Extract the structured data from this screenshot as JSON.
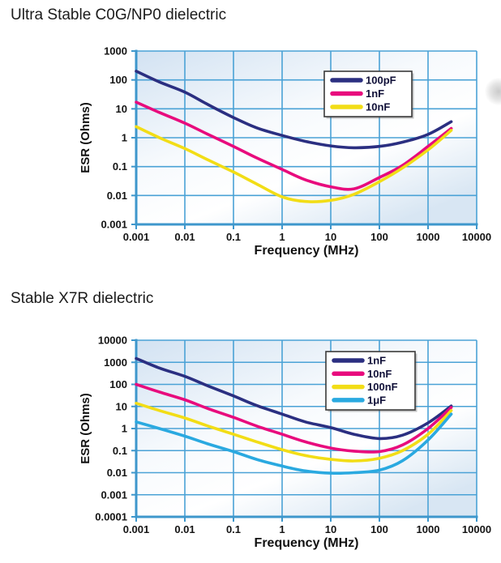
{
  "styles": {
    "grid_color": "#4aa2d6",
    "axis_color": "#3e97cc",
    "plot_bg_top": "#d2e2f2",
    "plot_bg_mid": "#f7fafd",
    "plot_bg_bottom": "#d8e6f3",
    "tick_text_color": "#141414",
    "axis_title_color": "#111111",
    "legend_text_color": "#101038",
    "legend_border_color": "#3a3a3a",
    "legend_bg": "#ffffff"
  },
  "chart_data": [
    {
      "type": "line",
      "title": "Ultra Stable C0G/NP0 dielectric",
      "xlabel": "Frequency (MHz)",
      "ylabel": "ESR (Ohms)",
      "x_scale": "log",
      "y_scale": "log",
      "grid": true,
      "legend_position": "top-right-inside",
      "xlim": [
        0.001,
        10000
      ],
      "ylim": [
        0.001,
        1000
      ],
      "x_tick_labels": [
        "0.001",
        "0.01",
        "0.1",
        "1",
        "10",
        "100",
        "1000",
        "10000"
      ],
      "x_ticks": [
        0.001,
        0.01,
        0.1,
        1,
        10,
        100,
        1000,
        10000
      ],
      "y_tick_labels": [
        "1000",
        "100",
        "10",
        "1",
        "0.1",
        "0.01",
        "0.001"
      ],
      "y_ticks": [
        1000,
        100,
        10,
        1,
        0.1,
        0.01,
        0.001
      ],
      "x": [
        0.001,
        0.003,
        0.01,
        0.03,
        0.1,
        0.3,
        1,
        3,
        10,
        30,
        100,
        300,
        1000,
        3000
      ],
      "series": [
        {
          "name": "100pF",
          "color": "#2b2f81",
          "values": [
            200,
            85,
            38,
            14,
            5,
            2.2,
            1.2,
            0.75,
            0.52,
            0.45,
            0.5,
            0.7,
            1.3,
            3.6
          ]
        },
        {
          "name": "1nF",
          "color": "#e80b7d",
          "values": [
            17,
            7.5,
            3.2,
            1.3,
            0.5,
            0.2,
            0.08,
            0.035,
            0.02,
            0.017,
            0.042,
            0.11,
            0.5,
            2.1
          ]
        },
        {
          "name": "10nF",
          "color": "#f2dd16",
          "values": [
            2.4,
            1.0,
            0.42,
            0.17,
            0.065,
            0.025,
            0.009,
            0.0062,
            0.0068,
            0.011,
            0.03,
            0.09,
            0.38,
            1.8
          ]
        }
      ]
    },
    {
      "type": "line",
      "title": "Stable X7R dielectric",
      "xlabel": "Frequency (MHz)",
      "ylabel": "ESR (Ohms)",
      "x_scale": "log",
      "y_scale": "log",
      "grid": true,
      "legend_position": "top-right-inside",
      "xlim": [
        0.001,
        10000
      ],
      "ylim": [
        0.0001,
        10000
      ],
      "x_tick_labels": [
        "0.001",
        "0.01",
        "0.1",
        "1",
        "10",
        "100",
        "1000",
        "10000"
      ],
      "x_ticks": [
        0.001,
        0.01,
        0.1,
        1,
        10,
        100,
        1000,
        10000
      ],
      "y_tick_labels": [
        "10000",
        "1000",
        "100",
        "10",
        "1",
        "0.1",
        "0.01",
        "0.001",
        "0.0001"
      ],
      "y_ticks": [
        10000,
        1000,
        100,
        10,
        1,
        0.1,
        0.01,
        0.001,
        0.0001
      ],
      "x": [
        0.001,
        0.003,
        0.01,
        0.03,
        0.1,
        0.3,
        1,
        3,
        10,
        30,
        100,
        300,
        1000,
        3000
      ],
      "series": [
        {
          "name": "1nF",
          "color": "#2b2f81",
          "values": [
            1500,
            550,
            230,
            85,
            30,
            11,
            4.5,
            2,
            1.1,
            0.55,
            0.35,
            0.5,
            1.8,
            10.5
          ]
        },
        {
          "name": "10nF",
          "color": "#e80b7d",
          "values": [
            100,
            45,
            20,
            8,
            3.2,
            1.3,
            0.55,
            0.25,
            0.13,
            0.095,
            0.09,
            0.18,
            1.0,
            9
          ]
        },
        {
          "name": "100nF",
          "color": "#f2dd16",
          "values": [
            14,
            6.5,
            3,
            1.3,
            0.55,
            0.25,
            0.11,
            0.06,
            0.04,
            0.034,
            0.045,
            0.1,
            0.55,
            6.5
          ]
        },
        {
          "name": "1μF",
          "color": "#2aa9e0",
          "values": [
            2,
            1.0,
            0.45,
            0.2,
            0.09,
            0.04,
            0.02,
            0.012,
            0.0095,
            0.01,
            0.013,
            0.035,
            0.3,
            4.5
          ]
        }
      ]
    }
  ]
}
